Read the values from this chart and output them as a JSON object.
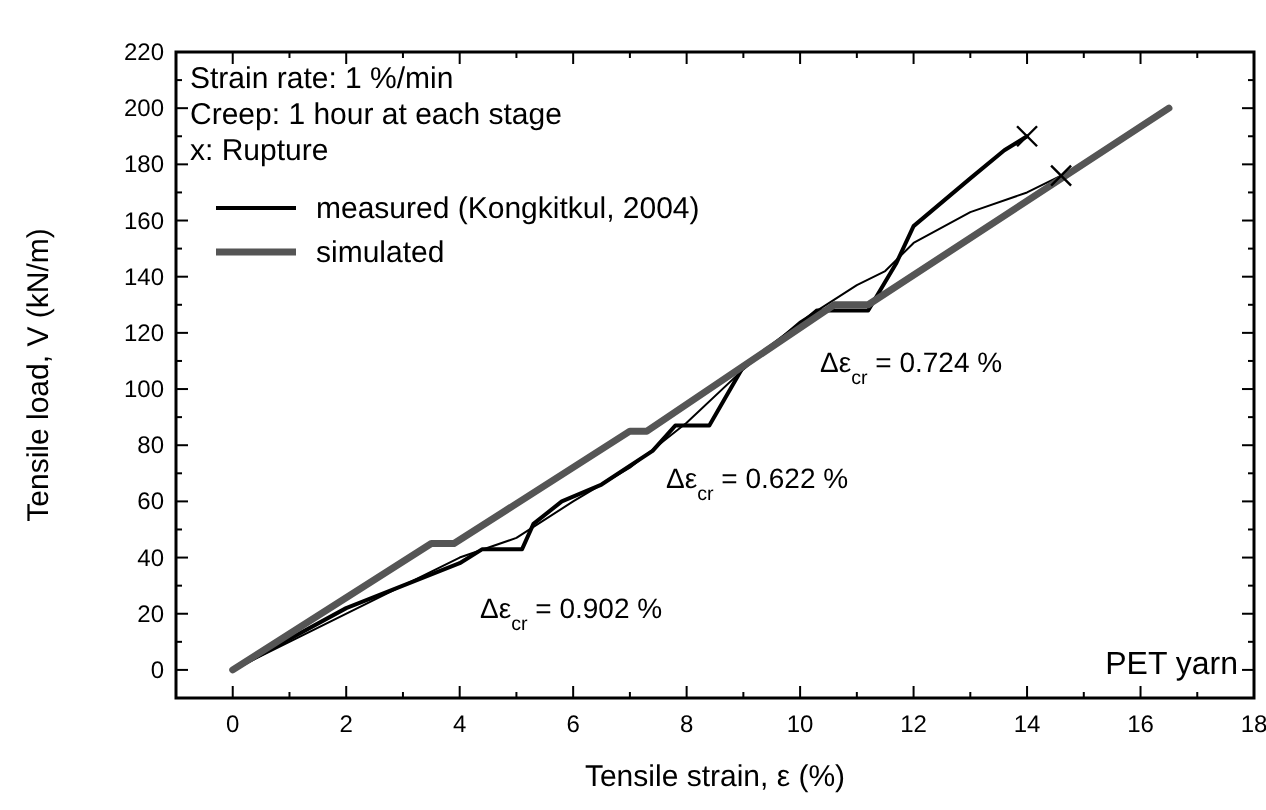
{
  "chart_data": {
    "type": "line",
    "xlabel": "Tensile strain, ε (%)",
    "ylabel": "Tensile load, V (kN/m)",
    "xlim": [
      -1,
      18
    ],
    "ylim": [
      -10,
      220
    ],
    "xticks": [
      0,
      2,
      4,
      6,
      8,
      10,
      12,
      14,
      16,
      18
    ],
    "yticks": [
      0,
      20,
      40,
      60,
      80,
      100,
      120,
      140,
      160,
      180,
      200,
      220
    ],
    "legend": "top left",
    "grid": false,
    "series": [
      {
        "name": "measured (Kongkitkul, 2004)",
        "color": "#000000",
        "x": [
          0,
          2,
          4,
          4.4,
          5.1,
          5.3,
          5.8,
          6.5,
          7.4,
          7.8,
          8.4,
          9,
          10,
          10.3,
          11.2,
          11.7,
          12,
          13,
          13.6,
          14
        ],
        "values": [
          0,
          22,
          38,
          43,
          43,
          52,
          60,
          66,
          78,
          87,
          87,
          108,
          123,
          128,
          128,
          145,
          158,
          175,
          185,
          190
        ]
      },
      {
        "color": "#000000",
        "x": [
          0,
          3,
          4,
          5,
          6,
          7,
          8,
          9,
          10,
          11,
          11.5,
          12,
          13,
          14,
          14.6
        ],
        "values": [
          0,
          30,
          40,
          47,
          60,
          72,
          88,
          107,
          124,
          137,
          142,
          152,
          163,
          170,
          176
        ]
      },
      {
        "name": "simulated",
        "color": "#555555",
        "x": [
          0,
          3.5,
          3.9,
          7,
          7.3,
          10.6,
          11.2,
          16.5
        ],
        "values": [
          0,
          45,
          45,
          85,
          85,
          130,
          130,
          200
        ]
      },
      {
        "type": "scatter",
        "marker": "cross",
        "color": "#000000",
        "x": [
          14,
          14.6
        ],
        "values": [
          190,
          176
        ]
      }
    ],
    "annotations": [
      "Strain rate: 1 %/min",
      "Creep: 1 hour at each stage",
      "x: Rupture",
      "Δε$_{cr}$ = 0.902 %",
      "Δε$_{cr}$ = 0.622 %",
      "Δε$_{cr}$ = 0.724 %",
      "PET yarn"
    ]
  }
}
